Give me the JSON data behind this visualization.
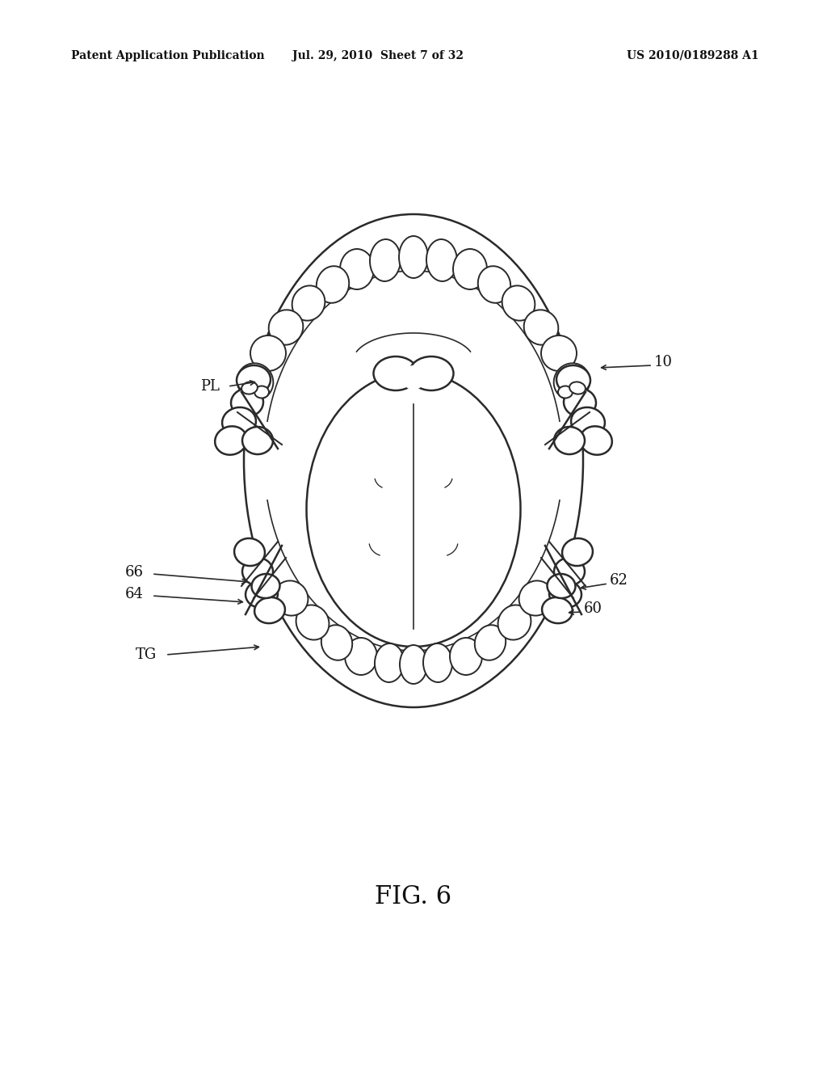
{
  "header_left": "Patent Application Publication",
  "header_mid": "Jul. 29, 2010  Sheet 7 of 32",
  "header_right": "US 2010/0189288 A1",
  "bg_color": "#ffffff",
  "line_color": "#2a2a2a",
  "fig_label": "FIG. 6"
}
